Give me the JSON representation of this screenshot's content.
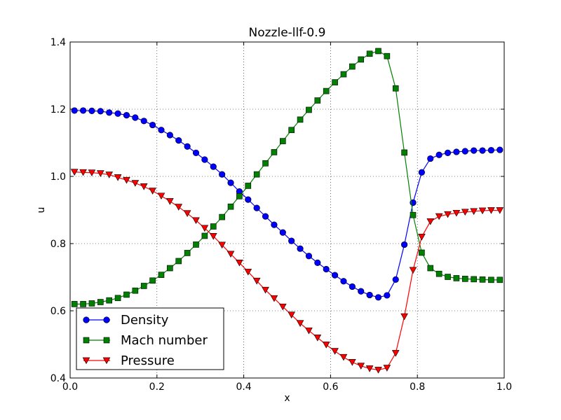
{
  "chart_data": {
    "type": "line",
    "title": "Nozzle-llf-0.9",
    "xlabel": "x",
    "ylabel": "u",
    "xlim": [
      0.0,
      1.0
    ],
    "ylim": [
      0.4,
      1.4
    ],
    "xticks": [
      "0.0",
      "0.2",
      "0.4",
      "0.6",
      "0.8",
      "1.0"
    ],
    "yticks": [
      "0.4",
      "0.6",
      "0.8",
      "1.0",
      "1.2",
      "1.4"
    ],
    "grid": true,
    "legend_position": "bottom-left",
    "x": [
      0.01,
      0.03,
      0.05,
      0.07,
      0.09,
      0.11,
      0.13,
      0.15,
      0.17,
      0.19,
      0.21,
      0.23,
      0.25,
      0.27,
      0.29,
      0.31,
      0.33,
      0.35,
      0.37,
      0.39,
      0.41,
      0.43,
      0.45,
      0.47,
      0.49,
      0.51,
      0.53,
      0.55,
      0.57,
      0.59,
      0.61,
      0.63,
      0.65,
      0.67,
      0.69,
      0.71,
      0.73,
      0.75,
      0.77,
      0.79,
      0.81,
      0.83,
      0.85,
      0.87,
      0.89,
      0.91,
      0.93,
      0.95,
      0.97,
      0.99
    ],
    "series": [
      {
        "name": "Density",
        "color": "#0000ff",
        "marker": "circle",
        "values": [
          1.196,
          1.196,
          1.195,
          1.194,
          1.19,
          1.187,
          1.182,
          1.175,
          1.165,
          1.153,
          1.138,
          1.123,
          1.107,
          1.089,
          1.07,
          1.05,
          1.029,
          1.006,
          0.981,
          0.955,
          0.931,
          0.906,
          0.881,
          0.856,
          0.833,
          0.808,
          0.785,
          0.763,
          0.743,
          0.724,
          0.706,
          0.688,
          0.672,
          0.658,
          0.647,
          0.64,
          0.646,
          0.693,
          0.797,
          0.922,
          1.012,
          1.053,
          1.064,
          1.07,
          1.073,
          1.075,
          1.077,
          1.077,
          1.078,
          1.079
        ]
      },
      {
        "name": "Mach number",
        "color": "#008000",
        "marker": "square",
        "values": [
          0.62,
          0.62,
          0.622,
          0.626,
          0.631,
          0.638,
          0.648,
          0.66,
          0.674,
          0.69,
          0.707,
          0.727,
          0.748,
          0.772,
          0.797,
          0.823,
          0.851,
          0.879,
          0.91,
          0.941,
          0.972,
          1.006,
          1.039,
          1.072,
          1.105,
          1.138,
          1.169,
          1.198,
          1.226,
          1.254,
          1.28,
          1.304,
          1.327,
          1.348,
          1.365,
          1.373,
          1.358,
          1.262,
          1.071,
          0.885,
          0.773,
          0.727,
          0.71,
          0.701,
          0.697,
          0.695,
          0.694,
          0.693,
          0.692,
          0.692
        ]
      },
      {
        "name": "Pressure",
        "color": "#ff0000",
        "marker": "triangle-down",
        "values": [
          1.013,
          1.012,
          1.011,
          1.009,
          1.005,
          0.997,
          0.989,
          0.98,
          0.97,
          0.957,
          0.942,
          0.926,
          0.909,
          0.89,
          0.869,
          0.846,
          0.822,
          0.796,
          0.769,
          0.743,
          0.716,
          0.689,
          0.662,
          0.637,
          0.612,
          0.588,
          0.563,
          0.541,
          0.52,
          0.499,
          0.48,
          0.462,
          0.447,
          0.436,
          0.428,
          0.424,
          0.43,
          0.474,
          0.583,
          0.721,
          0.82,
          0.866,
          0.881,
          0.887,
          0.891,
          0.894,
          0.896,
          0.898,
          0.899,
          0.899
        ]
      }
    ]
  }
}
